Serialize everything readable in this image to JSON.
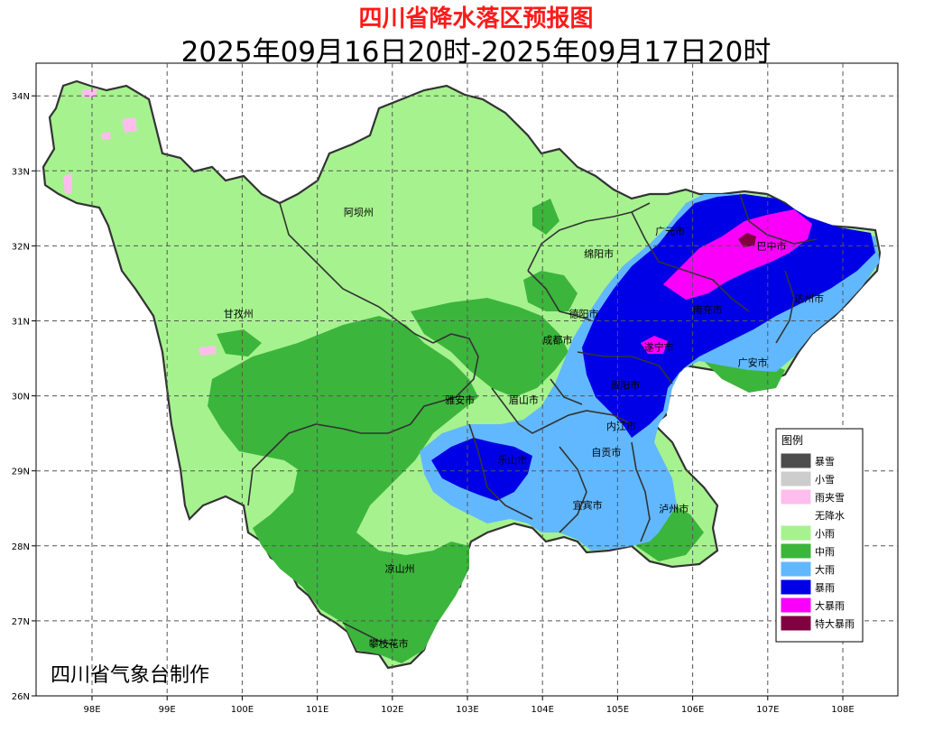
{
  "title": "四川省降水落区预报图",
  "subtitle": "2025年09月16日20时-2025年09月17日20时",
  "credit": "四川省气象台制作",
  "axes": {
    "lon_ticks": [
      "98E",
      "99E",
      "100E",
      "101E",
      "102E",
      "103E",
      "104E",
      "105E",
      "106E",
      "107E",
      "108E"
    ],
    "lat_ticks": [
      "34N",
      "33N",
      "32N",
      "31N",
      "30N",
      "29N",
      "28N",
      "27N",
      "26N"
    ]
  },
  "cities": [
    {
      "name": "阿坝州",
      "lon": 101.55,
      "lat": 32.4
    },
    {
      "name": "广元市",
      "lon": 105.7,
      "lat": 32.15
    },
    {
      "name": "绵阳市",
      "lon": 104.75,
      "lat": 31.85
    },
    {
      "name": "巴中市",
      "lon": 107.05,
      "lat": 31.95
    },
    {
      "name": "达州市",
      "lon": 107.55,
      "lat": 31.25
    },
    {
      "name": "南充市",
      "lon": 106.2,
      "lat": 31.1
    },
    {
      "name": "德阳市",
      "lon": 104.55,
      "lat": 31.05
    },
    {
      "name": "甘孜州",
      "lon": 99.95,
      "lat": 31.05
    },
    {
      "name": "成都市",
      "lon": 104.2,
      "lat": 30.7
    },
    {
      "name": "遂宁市",
      "lon": 105.55,
      "lat": 30.6
    },
    {
      "name": "广安市",
      "lon": 106.8,
      "lat": 30.4
    },
    {
      "name": "资阳市",
      "lon": 105.1,
      "lat": 30.1
    },
    {
      "name": "雅安市",
      "lon": 102.9,
      "lat": 29.9
    },
    {
      "name": "眉山市",
      "lon": 103.75,
      "lat": 29.9
    },
    {
      "name": "内江市",
      "lon": 105.05,
      "lat": 29.55
    },
    {
      "name": "乐山市",
      "lon": 103.6,
      "lat": 29.1
    },
    {
      "name": "自贡市",
      "lon": 104.85,
      "lat": 29.2
    },
    {
      "name": "宜宾市",
      "lon": 104.6,
      "lat": 28.5
    },
    {
      "name": "泸州市",
      "lon": 105.75,
      "lat": 28.45
    },
    {
      "name": "凉山州",
      "lon": 102.1,
      "lat": 27.65
    },
    {
      "name": "攀枝花市",
      "lon": 101.95,
      "lat": 26.65
    }
  ],
  "legend": {
    "title": "图例",
    "items": [
      {
        "label": "暴雪",
        "color": "#4d4d4d"
      },
      {
        "label": "小雪",
        "color": "#cccccc"
      },
      {
        "label": "雨夹雪",
        "color": "#ffbdee"
      },
      {
        "label": "无降水",
        "color": "#ffffff"
      },
      {
        "label": "小雨",
        "color": "#a6f28f"
      },
      {
        "label": "中雨",
        "color": "#3cb53c"
      },
      {
        "label": "大雨",
        "color": "#61b8ff"
      },
      {
        "label": "暴雨",
        "color": "#0000e6"
      },
      {
        "label": "大暴雨",
        "color": "#fa00fa"
      },
      {
        "label": "特大暴雨",
        "color": "#800040"
      }
    ]
  }
}
